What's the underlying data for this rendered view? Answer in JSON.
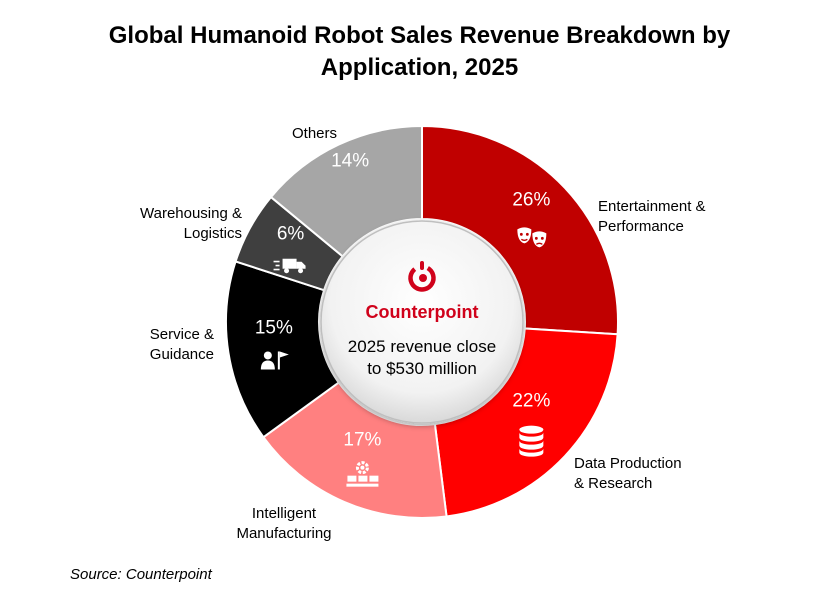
{
  "title_line1": "Global Humanoid Robot Sales Revenue Breakdown by",
  "title_line2": "Application, 2025",
  "center": {
    "brand": "Counterpoint",
    "text_line1": "2025 revenue close",
    "text_line2": "to $530 million",
    "brand_color": "#d0021b"
  },
  "source": "Source: Counterpoint",
  "chart_data": {
    "type": "pie",
    "variant": "donut",
    "title": "Global Humanoid Robot Sales Revenue Breakdown by Application, 2025",
    "unit": "%",
    "slices": [
      {
        "line1": "Entertainment &",
        "line2": "Performance",
        "value": 26,
        "label": "26%",
        "color": "#c00000",
        "icon": "theater-masks-icon"
      },
      {
        "line1": "Data Production",
        "line2": "& Research",
        "value": 22,
        "label": "22%",
        "color": "#ff0000",
        "icon": "database-icon"
      },
      {
        "line1": "Intelligent",
        "line2": "Manufacturing",
        "value": 17,
        "label": "17%",
        "color": "#ff8080",
        "icon": "conveyor-gear-icon"
      },
      {
        "line1": "Service &",
        "line2": "Guidance",
        "value": 15,
        "label": "15%",
        "color": "#000000",
        "icon": "person-flag-icon"
      },
      {
        "line1": "Warehousing &",
        "line2": "Logistics",
        "value": 6,
        "label": "6%",
        "color": "#3f3f3f",
        "icon": "delivery-truck-icon"
      },
      {
        "line1": "Others",
        "line2": "",
        "value": 14,
        "label": "14%",
        "color": "#a6a6a6",
        "icon": ""
      }
    ]
  }
}
